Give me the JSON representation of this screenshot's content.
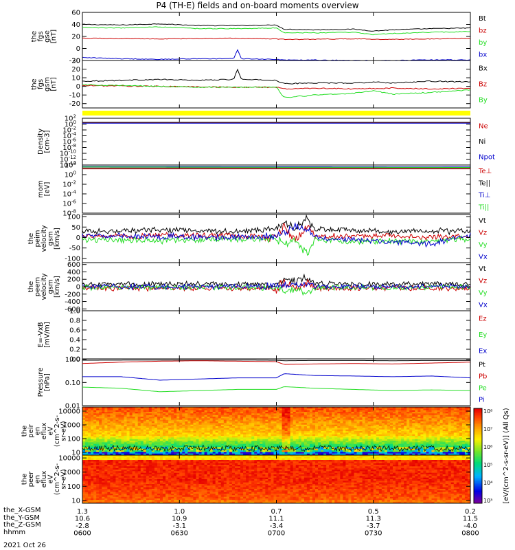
{
  "title": "P4 (TH-E) fields and on-board moments overview",
  "date": "2021 Oct 26",
  "footer_rows": [
    "the_X-GSM",
    "the_Y-GSM",
    "the_Z-GSM",
    "hhmm"
  ],
  "colors": {
    "black": "#000000",
    "red": "#cc0000",
    "green": "#22dd22",
    "blue": "#0000cc",
    "yellow": "#ffff00"
  },
  "chart_data": [
    {
      "type": "line",
      "ylabel": [
        "the",
        "fgs",
        "gse",
        "[nT]"
      ],
      "ylim": [
        -20,
        60
      ],
      "yticks": [
        -20,
        0,
        20,
        40,
        60
      ],
      "series": [
        {
          "name": "Bt",
          "color": "#000000",
          "x": [
            0,
            0.1,
            0.2,
            0.3,
            0.4,
            0.5,
            0.52,
            0.6,
            0.7,
            0.75,
            0.8,
            0.9,
            1.0
          ],
          "values": [
            40,
            39,
            41,
            38,
            38,
            39,
            32,
            31,
            32,
            29,
            31,
            33,
            34
          ]
        },
        {
          "name": "bz",
          "color": "#cc0000",
          "x": [
            0,
            0.2,
            0.4,
            0.5,
            0.52,
            0.7,
            0.8,
            0.9,
            1.0
          ],
          "values": [
            17,
            16,
            17,
            16,
            15,
            16,
            15,
            16,
            17
          ]
        },
        {
          "name": "by",
          "color": "#22dd22",
          "x": [
            0,
            0.1,
            0.2,
            0.3,
            0.4,
            0.5,
            0.52,
            0.6,
            0.7,
            0.75,
            0.8,
            0.9,
            1.0
          ],
          "values": [
            35,
            34,
            36,
            33,
            33,
            34,
            26,
            26,
            27,
            23,
            25,
            27,
            28
          ]
        },
        {
          "name": "bx",
          "color": "#0000cc",
          "x": [
            0,
            0.1,
            0.2,
            0.3,
            0.39,
            0.4,
            0.41,
            0.5,
            0.52,
            0.6,
            0.7,
            0.8,
            0.9,
            1.0
          ],
          "values": [
            -15,
            -17,
            -18,
            -17,
            -17,
            -2,
            -17,
            -18,
            -19,
            -19,
            -20,
            -20,
            -19,
            -19
          ]
        }
      ]
    },
    {
      "type": "line",
      "ylabel": [
        "the",
        "fgs",
        "gsm",
        "[nT]"
      ],
      "ylim": [
        -25,
        30
      ],
      "yticks": [
        -20,
        -10,
        0,
        10,
        20,
        30
      ],
      "series": [
        {
          "name": "Bx",
          "color": "#000000",
          "x": [
            0,
            0.1,
            0.2,
            0.3,
            0.39,
            0.4,
            0.41,
            0.5,
            0.52,
            0.6,
            0.7,
            0.75,
            0.8,
            0.9,
            1.0
          ],
          "values": [
            6,
            7,
            8,
            7,
            8,
            20,
            8,
            7,
            3,
            4,
            4,
            5,
            4,
            6,
            5
          ]
        },
        {
          "name": "Bz",
          "color": "#cc0000",
          "x": [
            0,
            0.2,
            0.4,
            0.5,
            0.52,
            0.6,
            0.7,
            0.8,
            0.9,
            1.0
          ],
          "values": [
            1,
            0,
            -1,
            -1,
            -3,
            -2,
            -3,
            -2,
            -3,
            -2
          ]
        },
        {
          "name": "By",
          "color": "#22dd22",
          "x": [
            0,
            0.1,
            0.2,
            0.3,
            0.4,
            0.5,
            0.52,
            0.6,
            0.7,
            0.75,
            0.8,
            0.9,
            1.0
          ],
          "values": [
            2,
            1,
            0,
            -1,
            -1,
            -1,
            -13,
            -10,
            -8,
            -5,
            -9,
            -7,
            -4
          ]
        }
      ]
    },
    {
      "type": "log-line",
      "ylabel": [
        "Density",
        "[cm-3]"
      ],
      "yrange_exp": [
        -14,
        2
      ],
      "ytick_exps": [
        -14,
        -12,
        -10,
        -8,
        -6,
        -4,
        -2,
        0,
        2
      ],
      "series": [
        {
          "name": "Ne",
          "color": "#cc0000",
          "x": [
            0,
            1
          ],
          "values_exp": [
            0.5,
            0.5
          ]
        },
        {
          "name": "Ni",
          "color": "#000000",
          "x": [
            0,
            1
          ],
          "values_exp": [
            0.6,
            0.6
          ]
        },
        {
          "name": "Npot",
          "color": "#0000cc",
          "x": [
            0,
            1
          ],
          "values_exp": [
            0.3,
            0.3
          ]
        }
      ]
    },
    {
      "type": "log-line",
      "ylabel": [
        "mom",
        "[eV]"
      ],
      "yrange_exp": [
        -8,
        2
      ],
      "ytick_exps": [
        -8,
        -6,
        -4,
        -2,
        0,
        2
      ],
      "series": [
        {
          "name": "Te⊥",
          "color": "#cc0000",
          "x": [
            0,
            1
          ],
          "values_exp": [
            1.2,
            1.2
          ]
        },
        {
          "name": "Te||",
          "color": "#000000",
          "x": [
            0,
            1
          ],
          "values_exp": [
            1.4,
            1.4
          ]
        },
        {
          "name": "Ti⊥",
          "color": "#0000cc",
          "x": [
            0,
            1
          ],
          "values_exp": [
            1.7,
            1.6
          ]
        },
        {
          "name": "Ti||",
          "color": "#22dd22",
          "x": [
            0,
            1
          ],
          "values_exp": [
            1.6,
            1.5
          ]
        }
      ]
    },
    {
      "type": "line",
      "ylabel": [
        "the",
        "peim",
        "velocity",
        "gsm",
        "[km/s]"
      ],
      "ylim": [
        -120,
        110
      ],
      "yticks": [
        -100,
        -50,
        0,
        50,
        100
      ],
      "series": [
        {
          "name": "Vt",
          "color": "#000000",
          "x": [
            0,
            0.2,
            0.4,
            0.5,
            0.52,
            0.55,
            0.58,
            0.6,
            0.7,
            0.8,
            0.9,
            1.0
          ],
          "values": [
            30,
            35,
            30,
            32,
            70,
            50,
            90,
            40,
            35,
            30,
            32,
            28
          ]
        },
        {
          "name": "Vz",
          "color": "#cc0000",
          "x": [
            0,
            0.2,
            0.4,
            0.5,
            0.52,
            0.55,
            0.58,
            0.6,
            0.7,
            0.8,
            0.9,
            1.0
          ],
          "values": [
            5,
            10,
            8,
            5,
            55,
            -20,
            60,
            10,
            5,
            8,
            0,
            5
          ]
        },
        {
          "name": "Vy",
          "color": "#22dd22",
          "x": [
            0,
            0.2,
            0.4,
            0.5,
            0.52,
            0.55,
            0.58,
            0.6,
            0.7,
            0.8,
            0.9,
            1.0
          ],
          "values": [
            -10,
            -15,
            -8,
            -10,
            -30,
            -20,
            -70,
            -10,
            -20,
            -15,
            -20,
            -5
          ]
        },
        {
          "name": "Vx",
          "color": "#0000cc",
          "x": [
            0,
            0.2,
            0.4,
            0.5,
            0.52,
            0.55,
            0.58,
            0.6,
            0.7,
            0.8,
            0.9,
            1.0
          ],
          "values": [
            10,
            5,
            0,
            5,
            20,
            60,
            30,
            0,
            -10,
            -20,
            -30,
            10
          ]
        }
      ]
    },
    {
      "type": "line",
      "ylabel": [
        "the",
        "peem",
        "velocity",
        "gsm",
        "[km/s]"
      ],
      "ylim": [
        -650,
        650
      ],
      "yticks": [
        -600,
        -400,
        -200,
        0,
        200,
        400,
        600
      ],
      "series": [
        {
          "name": "Vt",
          "color": "#000000",
          "x": [
            0,
            0.2,
            0.4,
            0.5,
            0.52,
            0.55,
            0.58,
            0.6,
            0.7,
            0.8,
            0.9,
            1.0
          ],
          "values": [
            60,
            70,
            60,
            65,
            200,
            150,
            250,
            80,
            70,
            75,
            70,
            60
          ]
        },
        {
          "name": "Vz",
          "color": "#cc0000",
          "x": [
            0,
            0.2,
            0.4,
            0.5,
            0.52,
            0.55,
            0.58,
            0.6,
            0.7,
            0.8,
            0.9,
            1.0
          ],
          "values": [
            -40,
            -45,
            -40,
            -45,
            100,
            -50,
            120,
            -40,
            -50,
            -40,
            -45,
            -50
          ]
        },
        {
          "name": "Vy",
          "color": "#22dd22",
          "x": [
            0,
            0.2,
            0.4,
            0.5,
            0.52,
            0.55,
            0.58,
            0.6,
            0.7,
            0.8,
            0.9,
            1.0
          ],
          "values": [
            -20,
            -25,
            -20,
            -20,
            -150,
            -60,
            -180,
            -30,
            -20,
            -25,
            -20,
            -20
          ]
        },
        {
          "name": "Vx",
          "color": "#0000cc",
          "x": [
            0,
            0.2,
            0.4,
            0.5,
            0.52,
            0.55,
            0.58,
            0.6,
            0.7,
            0.8,
            0.9,
            1.0
          ],
          "values": [
            10,
            0,
            5,
            0,
            50,
            20,
            60,
            10,
            0,
            5,
            0,
            10
          ]
        }
      ]
    },
    {
      "type": "line",
      "ylabel": [
        "E=-VxB",
        "[mV/m]"
      ],
      "ylim": [
        0,
        1
      ],
      "yticks": [
        0,
        0.2,
        0.4,
        0.6,
        0.8,
        1.0
      ],
      "yticklabels": [
        "0.0",
        "0.2",
        "0.4",
        "0.6",
        "0.8",
        "1.0"
      ],
      "series": [
        {
          "name": "Ez",
          "color": "#cc0000",
          "x": [],
          "values": []
        },
        {
          "name": "Ey",
          "color": "#22dd22",
          "x": [],
          "values": []
        },
        {
          "name": "Ex",
          "color": "#0000cc",
          "x": [],
          "values": []
        }
      ]
    },
    {
      "type": "log-line",
      "ylabel": [
        "Pressure",
        "[nPa]"
      ],
      "yrange_exp": [
        -2,
        0.02
      ],
      "ytick_exps": [
        -2,
        -1,
        0
      ],
      "yticklabels": [
        "0.01",
        "0.10",
        "1.00"
      ],
      "series": [
        {
          "name": "Pt",
          "color": "#000000",
          "x": [
            0,
            0.2,
            0.4,
            0.5,
            0.52,
            0.6,
            0.7,
            0.8,
            0.9,
            1.0
          ],
          "values_exp": [
            -0.04,
            -0.03,
            -0.03,
            -0.04,
            -0.06,
            -0.05,
            -0.05,
            -0.06,
            -0.05,
            -0.05
          ]
        },
        {
          "name": "Pb",
          "color": "#cc0000",
          "x": [
            0,
            0.1,
            0.2,
            0.3,
            0.4,
            0.5,
            0.52,
            0.6,
            0.7,
            0.8,
            0.9,
            1.0
          ],
          "values_exp": [
            -0.18,
            -0.12,
            -0.08,
            -0.06,
            -0.08,
            -0.1,
            -0.22,
            -0.2,
            -0.18,
            -0.2,
            -0.16,
            -0.12
          ]
        },
        {
          "name": "Pe",
          "color": "#22dd22",
          "x": [
            0,
            0.1,
            0.2,
            0.3,
            0.4,
            0.5,
            0.52,
            0.6,
            0.7,
            0.8,
            0.9,
            1.0
          ],
          "values_exp": [
            -1.2,
            -1.25,
            -1.4,
            -1.35,
            -1.3,
            -1.3,
            -1.18,
            -1.25,
            -1.3,
            -1.35,
            -1.32,
            -1.35
          ]
        },
        {
          "name": "Pi",
          "color": "#0000cc",
          "x": [
            0,
            0.1,
            0.2,
            0.3,
            0.4,
            0.5,
            0.52,
            0.6,
            0.7,
            0.8,
            0.9,
            1.0
          ],
          "values_exp": [
            -0.75,
            -0.75,
            -0.9,
            -0.85,
            -0.8,
            -0.8,
            -0.62,
            -0.7,
            -0.72,
            -0.75,
            -0.72,
            -0.8
          ]
        }
      ]
    },
    {
      "type": "heatmap",
      "ylabel": [
        "the",
        "peir",
        "en",
        "eflux",
        "eV",
        "(cm^2-s-",
        "sr-eV)"
      ],
      "yrange_exp": [
        0.8,
        4.3
      ],
      "ytick_exps": [
        1,
        2,
        3,
        4
      ],
      "yticklabels": [
        "10",
        "100",
        "1000",
        "10000"
      ]
    },
    {
      "type": "heatmap",
      "ylabel": [
        "the",
        "peer",
        "en",
        "eflux",
        "eV",
        "(cm^2-s-",
        "sr-eV)"
      ],
      "yrange_exp": [
        0.8,
        4.2
      ],
      "ytick_exps": [
        1,
        2,
        3,
        4
      ],
      "yticklabels": [
        "10",
        "100",
        "1000",
        "10000"
      ]
    }
  ],
  "colorbar_label": "[eV/(cm^2-s-sr-eV)] (All Qs)",
  "colorbar_ticks": [
    "10³",
    "10⁴",
    "10⁵",
    "10⁶",
    "10⁷",
    "10⁸"
  ],
  "time_axis": {
    "ticks": [
      "0600",
      "0630",
      "0700",
      "0730",
      "0800"
    ],
    "x_gsm": [
      "1.3",
      "1.0",
      "0.7",
      "0.5",
      "0.2"
    ],
    "y_gsm": [
      "10.6",
      "10.9",
      "11.1",
      "11.3",
      "11.5"
    ],
    "z_gsm": [
      "-2.8",
      "-3.1",
      "-3.4",
      "-3.7",
      "-4.0"
    ]
  }
}
